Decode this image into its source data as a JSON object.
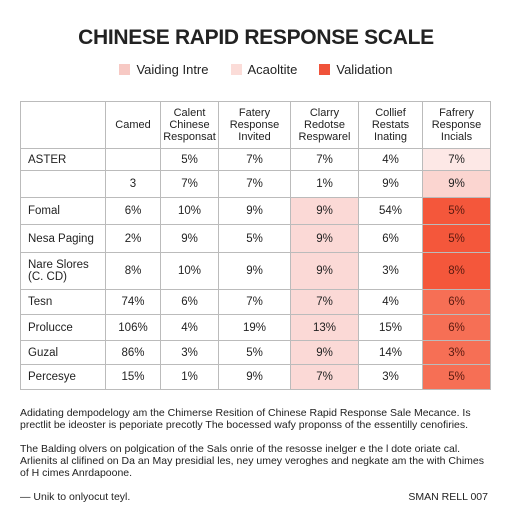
{
  "header": {
    "title": "CHINESE RAPID RESPONSE SCALE"
  },
  "legend": [
    "Vaiding Intre",
    "Acaoltite",
    "Validation"
  ],
  "table": {
    "columns": [
      "Camed",
      "Calent Chinese Responsat",
      "Fatery Response Invited",
      "Clarry Redotse Respwarel",
      "Collief Restats Inating",
      "Fafrery Response Incials"
    ],
    "rows": [
      {
        "label": "ASTER",
        "cells": [
          null,
          "5%",
          "7%",
          "7%",
          "4%",
          "7%"
        ]
      },
      {
        "label": null,
        "cells": [
          "3",
          "7%",
          "7%",
          "1%",
          "9%",
          "9%"
        ]
      },
      {
        "label": "Fomal",
        "cells": [
          "6%",
          "10%",
          "9%",
          "9%",
          "54%",
          "5%"
        ]
      },
      {
        "label": "Nesa Paging",
        "cells": [
          "2%",
          "9%",
          "5%",
          "9%",
          "6%",
          "5%"
        ]
      },
      {
        "label": "Nare Slores (C. CD)",
        "cells": [
          "8%",
          "10%",
          "9%",
          "9%",
          "3%",
          "8%"
        ]
      },
      {
        "label": "Tesn",
        "cells": [
          "74%",
          "6%",
          "7%",
          "7%",
          "4%",
          "6%"
        ]
      },
      {
        "label": "Prolucce",
        "cells": [
          "106%",
          "4%",
          "19%",
          "13%",
          "15%",
          "6%"
        ]
      },
      {
        "label": "Guzal",
        "cells": [
          "86%",
          "3%",
          "5%",
          "9%",
          "14%",
          "3%"
        ]
      },
      {
        "label": "Percesye",
        "cells": [
          "15%",
          "1%",
          "9%",
          "7%",
          "3%",
          "5%"
        ]
      }
    ]
  },
  "footer": {
    "paragraphs": [
      "Adidating dempodelogy am the Chimerse Resition of Chinese Rapid Response Sale Mecance. Is prectlit be ideoster is peporiate precotly The bocessed wafy proponss of the essentilly cenofiries.",
      "The Balding olvers on polgication of the Sals onrie of the resosse inelger e the l dote oriate cal. Arlienits al clifined on Da an May presidial les, ney umey veroghes and negkate am the with Chimes of H cimes Anrdapoone.",
      "— Unik to onlyocut teyl."
    ],
    "signature": "SMAN RELL 007"
  }
}
